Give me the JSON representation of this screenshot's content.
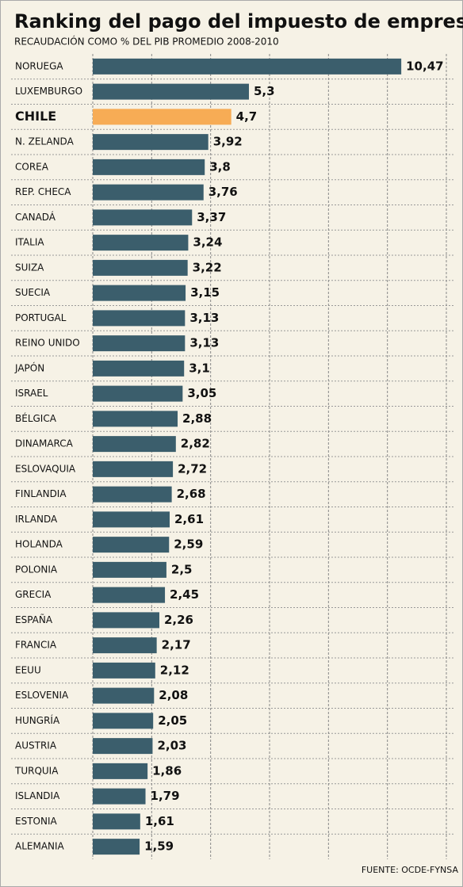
{
  "chart_data": {
    "type": "bar",
    "orientation": "horizontal",
    "title": "Ranking del pago del impuesto de empresas",
    "subtitle": "RECAUDACIÓN COMO % DEL PIB PROMEDIO 2008-2010",
    "source": "FUENTE: OCDE-FYNSA",
    "categories": [
      "NORUEGA",
      "LUXEMBURGO",
      "CHILE",
      "N. ZELANDA",
      "COREA",
      "REP. CHECA",
      "CANADÁ",
      "ITALIA",
      "SUIZA",
      "SUECIA",
      "PORTUGAL",
      "REINO UNIDO",
      "JAPÓN",
      "ISRAEL",
      "BÉLGICA",
      "DINAMARCA",
      "ESLOVAQUIA",
      "FINLANDIA",
      "IRLANDA",
      "HOLANDA",
      "POLONIA",
      "GRECIA",
      "ESPAÑA",
      "FRANCIA",
      "EEUU",
      "ESLOVENIA",
      "HUNGRÍA",
      "AUSTRIA",
      "TURQUIA",
      "ISLANDIA",
      "ESTONIA",
      "ALEMANIA"
    ],
    "values": [
      10.47,
      5.3,
      4.7,
      3.92,
      3.8,
      3.76,
      3.37,
      3.24,
      3.22,
      3.15,
      3.13,
      3.13,
      3.1,
      3.05,
      2.88,
      2.82,
      2.72,
      2.68,
      2.61,
      2.59,
      2.5,
      2.45,
      2.26,
      2.17,
      2.12,
      2.08,
      2.05,
      2.03,
      1.86,
      1.79,
      1.61,
      1.59
    ],
    "value_labels": [
      "10,47",
      "5,3",
      "4,7",
      "3,92",
      "3,8",
      "3,76",
      "3,37",
      "3,24",
      "3,22",
      "3,15",
      "3,13",
      "3,13",
      "3,1",
      "3,05",
      "2,88",
      "2,82",
      "2,72",
      "2,68",
      "2,61",
      "2,59",
      "2,5",
      "2,45",
      "2,26",
      "2,17",
      "2,12",
      "2,08",
      "2,05",
      "2,03",
      "1,86",
      "1,79",
      "1,61",
      "1,59"
    ],
    "colors": [
      "#3b5e6c",
      "#3b5e6c",
      "#f7ac55",
      "#3b5e6c",
      "#3b5e6c",
      "#3b5e6c",
      "#3b5e6c",
      "#3b5e6c",
      "#3b5e6c",
      "#3b5e6c",
      "#3b5e6c",
      "#3b5e6c",
      "#3b5e6c",
      "#3b5e6c",
      "#3b5e6c",
      "#3b5e6c",
      "#3b5e6c",
      "#3b5e6c",
      "#3b5e6c",
      "#3b5e6c",
      "#3b5e6c",
      "#3b5e6c",
      "#3b5e6c",
      "#3b5e6c",
      "#3b5e6c",
      "#3b5e6c",
      "#3b5e6c",
      "#3b5e6c",
      "#3b5e6c",
      "#3b5e6c",
      "#3b5e6c",
      "#3b5e6c"
    ],
    "xlim": [
      0,
      12
    ],
    "xticks": [
      0,
      2,
      4,
      6,
      8,
      10,
      12
    ],
    "grid": true
  }
}
